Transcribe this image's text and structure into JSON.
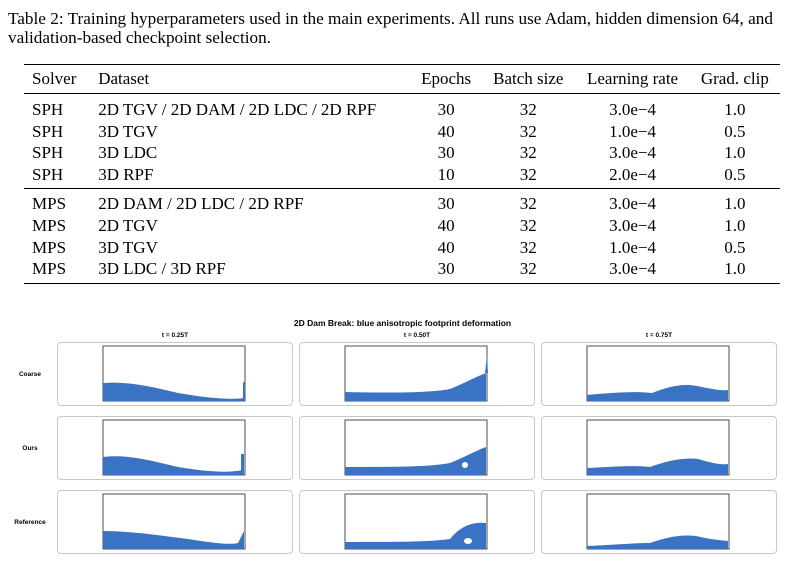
{
  "caption": "Table 2: Training hyperparameters used in the main experiments. All runs use Adam, hidden dimension 64, and validation-based checkpoint selection.",
  "table": {
    "headers": {
      "solver": "Solver",
      "dataset": "Dataset",
      "epochs": "Epochs",
      "batch": "Batch size",
      "lr": "Learning rate",
      "clip": "Grad. clip"
    },
    "groups": [
      {
        "rows": [
          {
            "solver": "SPH",
            "dataset": "2D TGV / 2D DAM / 2D LDC / 2D RPF",
            "epochs": "30",
            "batch": "32",
            "lr": "3.0e−4",
            "clip": "1.0"
          },
          {
            "solver": "SPH",
            "dataset": "3D TGV",
            "epochs": "40",
            "batch": "32",
            "lr": "1.0e−4",
            "clip": "0.5"
          },
          {
            "solver": "SPH",
            "dataset": "3D LDC",
            "epochs": "30",
            "batch": "32",
            "lr": "3.0e−4",
            "clip": "1.0"
          },
          {
            "solver": "SPH",
            "dataset": "3D RPF",
            "epochs": "10",
            "batch": "32",
            "lr": "2.0e−4",
            "clip": "0.5"
          }
        ]
      },
      {
        "rows": [
          {
            "solver": "MPS",
            "dataset": "2D DAM / 2D LDC / 2D RPF",
            "epochs": "30",
            "batch": "32",
            "lr": "3.0e−4",
            "clip": "1.0"
          },
          {
            "solver": "MPS",
            "dataset": "2D TGV",
            "epochs": "40",
            "batch": "32",
            "lr": "3.0e−4",
            "clip": "1.0"
          },
          {
            "solver": "MPS",
            "dataset": "3D TGV",
            "epochs": "40",
            "batch": "32",
            "lr": "1.0e−4",
            "clip": "0.5"
          },
          {
            "solver": "MPS",
            "dataset": "3D LDC / 3D RPF",
            "epochs": "30",
            "batch": "32",
            "lr": "3.0e−4",
            "clip": "1.0"
          }
        ]
      }
    ]
  },
  "figure": {
    "title": "2D Dam Break: blue anisotropic footprint deformation",
    "columns": [
      "t = 0.25T",
      "t = 0.50T",
      "t = 0.75T"
    ],
    "rows": [
      "Coarse",
      "Ours",
      "Reference"
    ],
    "colors": {
      "fluid": "#3a72c4",
      "box": "#222222",
      "panel_border": "#c8c8c8"
    }
  }
}
